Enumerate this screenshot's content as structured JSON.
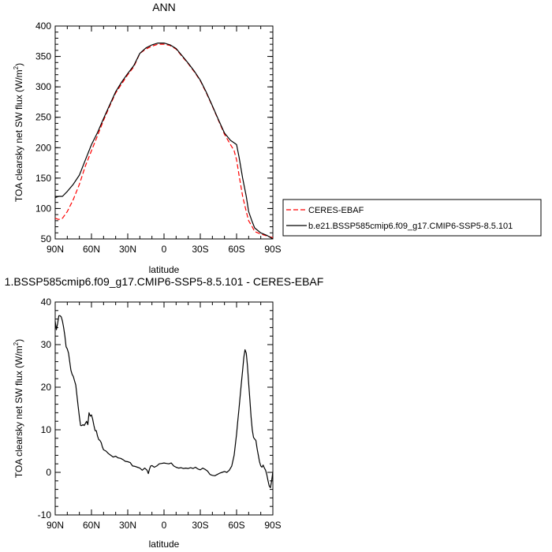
{
  "chart_data": [
    {
      "type": "line",
      "title": "ANN",
      "xlabel": "latitude",
      "ylabel": "TOA clearsky net SW flux (W/m",
      "ylabel_sup": "2",
      "ylabel_end": ")",
      "xlim": [
        90,
        -90
      ],
      "ylim": [
        50,
        400
      ],
      "x_ticks": [
        90,
        60,
        30,
        0,
        -30,
        -60,
        -90
      ],
      "x_tick_labels": [
        "90N",
        "60N",
        "30N",
        "0",
        "30S",
        "60S",
        "90S"
      ],
      "y_ticks": [
        50,
        100,
        150,
        200,
        250,
        300,
        350,
        400
      ],
      "y_tick_labels": [
        "50",
        "100",
        "150",
        "200",
        "250",
        "300",
        "350",
        "400"
      ],
      "legend_position": "right",
      "series": [
        {
          "name": "CERES-EBAF",
          "color": "#ff0000",
          "dash": "dashed",
          "x": [
            90,
            87,
            84,
            80,
            75,
            70,
            65,
            60,
            55,
            50,
            45,
            40,
            35,
            30,
            25,
            20,
            15,
            10,
            5,
            0,
            -5,
            -10,
            -15,
            -20,
            -25,
            -30,
            -35,
            -40,
            -45,
            -50,
            -55,
            -58,
            -60,
            -62,
            -65,
            -68,
            -70,
            -73,
            -75,
            -80,
            -85,
            -90
          ],
          "y": [
            84,
            82,
            84,
            95,
            115,
            140,
            170,
            195,
            220,
            245,
            268,
            290,
            305,
            320,
            333,
            355,
            362,
            367,
            370,
            370,
            368,
            362,
            350,
            338,
            325,
            310,
            290,
            268,
            245,
            222,
            205,
            195,
            180,
            155,
            120,
            95,
            80,
            70,
            62,
            58,
            55,
            52
          ]
        },
        {
          "name": "b.e21.BSSP585cmip6.f09_g17.CMIP6-SSP5-8.5.101",
          "color": "#000000",
          "dash": "solid",
          "x": [
            90,
            87,
            84,
            80,
            75,
            70,
            65,
            60,
            55,
            50,
            45,
            40,
            35,
            30,
            25,
            20,
            15,
            10,
            5,
            0,
            -5,
            -10,
            -15,
            -20,
            -25,
            -30,
            -35,
            -40,
            -45,
            -50,
            -55,
            -58,
            -60,
            -62,
            -65,
            -68,
            -70,
            -73,
            -75,
            -80,
            -85,
            -90
          ],
          "y": [
            118,
            120,
            120,
            128,
            140,
            155,
            180,
            205,
            225,
            248,
            270,
            292,
            308,
            322,
            335,
            355,
            364,
            369,
            372,
            372,
            369,
            363,
            351,
            339,
            326,
            311,
            291,
            269,
            246,
            224,
            212,
            208,
            205,
            185,
            150,
            120,
            95,
            78,
            68,
            60,
            56,
            50
          ]
        }
      ]
    },
    {
      "type": "line",
      "title": "1.BSSP585cmip6.f09_g17.CMIP6-SSP5-8.5.101 - CERES-EBAF",
      "xlabel": "latitude",
      "ylabel": "TOA clearsky net SW flux (W/m",
      "ylabel_sup": "2",
      "ylabel_end": ")",
      "xlim": [
        90,
        -90
      ],
      "ylim": [
        -10,
        40
      ],
      "x_ticks": [
        90,
        60,
        30,
        0,
        -30,
        -60,
        -90
      ],
      "x_tick_labels": [
        "90N",
        "60N",
        "30N",
        "0",
        "30S",
        "60S",
        "90S"
      ],
      "y_ticks": [
        -10,
        0,
        10,
        20,
        30,
        40
      ],
      "y_tick_labels": [
        "-10",
        "0",
        "10",
        "20",
        "30",
        "40"
      ],
      "series": [
        {
          "color": "#000000",
          "dash": "solid",
          "x": [
            90,
            89,
            88,
            87,
            86,
            85,
            84,
            83,
            82,
            81,
            80,
            79,
            78,
            77,
            76,
            75,
            74,
            73,
            72,
            71,
            70,
            69,
            68,
            67,
            66,
            65,
            64,
            63,
            62,
            61,
            60,
            59,
            58,
            57,
            56,
            55,
            54,
            53,
            52,
            51,
            50,
            48,
            46,
            44,
            42,
            40,
            38,
            36,
            34,
            32,
            30,
            28,
            26,
            24,
            22,
            20,
            18,
            16,
            14,
            13,
            12,
            11,
            10,
            8,
            6,
            4,
            2,
            0,
            -2,
            -4,
            -6,
            -8,
            -10,
            -12,
            -14,
            -16,
            -18,
            -20,
            -22,
            -24,
            -26,
            -28,
            -30,
            -32,
            -34,
            -36,
            -38,
            -40,
            -42,
            -44,
            -46,
            -48,
            -50,
            -52,
            -54,
            -56,
            -58,
            -60,
            -61,
            -62,
            -63,
            -64,
            -65,
            -66,
            -67,
            -68,
            -69,
            -70,
            -71,
            -72,
            -73,
            -74,
            -75,
            -76,
            -77,
            -78,
            -79,
            -80,
            -81,
            -82,
            -83,
            -84,
            -85,
            -86,
            -87,
            -88,
            -89,
            -90
          ],
          "y": [
            35.5,
            33.5,
            35,
            36.8,
            36.8,
            36.5,
            35.5,
            34,
            32,
            29.5,
            29,
            28,
            26,
            24,
            23,
            22.5,
            21.5,
            20.5,
            18,
            15.5,
            13,
            11,
            11,
            11.2,
            11,
            11.5,
            12,
            11.2,
            14,
            13.2,
            13.5,
            12.5,
            11,
            9.8,
            9.8,
            8.5,
            7.7,
            7.5,
            7,
            6,
            5.3,
            5,
            4.4,
            4,
            3.6,
            3.8,
            3.4,
            3.3,
            3,
            2.6,
            2.5,
            2.3,
            1.5,
            1.4,
            1.2,
            1,
            0.5,
            1,
            0.5,
            -0.3,
            0.8,
            1.5,
            1.6,
            1.2,
            1.5,
            2,
            2.1,
            2.2,
            2.1,
            2,
            2.2,
            1.5,
            1.2,
            1,
            1.1,
            0.9,
            1,
            0.9,
            1.1,
            0.9,
            1.2,
            0.8,
            0.6,
            1,
            0.7,
            0.3,
            -0.5,
            -0.7,
            -0.8,
            -0.5,
            -0.2,
            0,
            0.2,
            0,
            0.5,
            1.5,
            4,
            9,
            12,
            15,
            18,
            21,
            24,
            27,
            28.8,
            28,
            25,
            21,
            17,
            13,
            10,
            8.2,
            7.8,
            7.5,
            5.5,
            4,
            2.5,
            1.5,
            1.2,
            1.7,
            1,
            0.5,
            -0.5,
            -2,
            -3.2,
            -3.6,
            -2,
            0.2
          ]
        }
      ]
    }
  ]
}
